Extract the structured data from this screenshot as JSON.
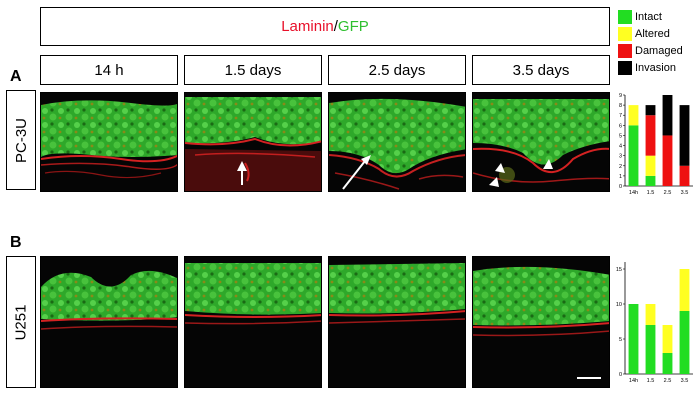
{
  "figure": {
    "title": {
      "stain_a": "Laminin",
      "separator": "/",
      "stain_b": "GFP"
    },
    "timepoints": [
      "14 h",
      "1.5 days",
      "2.5 days",
      "3.5 days"
    ],
    "rows": [
      {
        "letter": "A",
        "label": "PC-3U"
      },
      {
        "letter": "B",
        "label": "U251"
      }
    ],
    "legend": [
      {
        "label": "Intact",
        "color": "#22dd22"
      },
      {
        "label": "Altered",
        "color": "#ffff22"
      },
      {
        "label": "Damaged",
        "color": "#ee1111"
      },
      {
        "label": "Invasion",
        "color": "#000000"
      }
    ]
  },
  "chart_data": [
    {
      "type": "bar",
      "stacked": true,
      "panel": "A",
      "categories": [
        "14h",
        "1.5",
        "2.5",
        "3.5"
      ],
      "ylim": [
        0,
        9
      ],
      "yticks": [
        0,
        1,
        2,
        3,
        4,
        5,
        6,
        7,
        8,
        9
      ],
      "series": [
        {
          "name": "Intact",
          "values": [
            6,
            1,
            0,
            0
          ]
        },
        {
          "name": "Altered",
          "values": [
            2,
            2,
            0,
            0
          ]
        },
        {
          "name": "Damaged",
          "values": [
            0,
            4,
            5,
            2
          ]
        },
        {
          "name": "Invasion",
          "values": [
            0,
            1,
            4,
            6
          ]
        }
      ]
    },
    {
      "type": "bar",
      "stacked": true,
      "panel": "B",
      "categories": [
        "14h",
        "1.5",
        "2.5",
        "3.5"
      ],
      "ylim": [
        0,
        16
      ],
      "yticks": [
        0,
        5,
        10,
        15
      ],
      "series": [
        {
          "name": "Intact",
          "values": [
            10,
            7,
            3,
            9
          ]
        },
        {
          "name": "Altered",
          "values": [
            0,
            3,
            4,
            6
          ]
        },
        {
          "name": "Damaged",
          "values": [
            0,
            0,
            0,
            0
          ]
        },
        {
          "name": "Invasion",
          "values": [
            0,
            0,
            0,
            0
          ]
        }
      ]
    }
  ]
}
